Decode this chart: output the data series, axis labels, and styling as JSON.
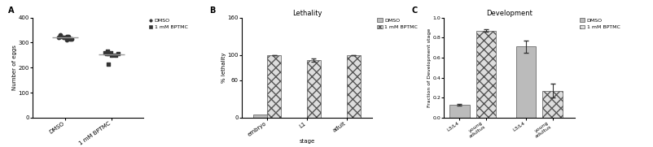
{
  "panel_A": {
    "panel_label": "A",
    "ylabel": "Number of eggs",
    "groups": [
      "DMSO",
      "1 mM BPTMC"
    ],
    "dmso_points": [
      320,
      315,
      325,
      310,
      330,
      325,
      320,
      315,
      325,
      320
    ],
    "bptmc_points": [
      260,
      255,
      250,
      265,
      255,
      260,
      215,
      250,
      260,
      255
    ],
    "dmso_mean": 321,
    "bptmc_mean": 253,
    "ylim": [
      0,
      400
    ],
    "yticks": [
      0,
      100,
      200,
      300,
      400
    ],
    "legend_labels": [
      "DMSO",
      "1 mM BPTMC"
    ]
  },
  "panel_B": {
    "title": "Lethality",
    "panel_label": "B",
    "ylabel": "% lethality",
    "xlabel": "stage",
    "stages": [
      "embryo",
      "L1",
      "adult"
    ],
    "dmso_values": [
      5,
      0,
      0
    ],
    "bptmc_values": [
      100,
      92,
      100
    ],
    "bptmc_errors": [
      0,
      3,
      0
    ],
    "ylim": [
      0,
      160
    ],
    "yticks": [
      0,
      60,
      100,
      160
    ],
    "legend_labels": [
      "DMSO",
      "1 mM BPTMC"
    ]
  },
  "panel_C": {
    "title": "Development",
    "panel_label": "C",
    "ylabel": "Fraction of Development stage",
    "categories": [
      "L3/L4",
      "young\nadultus",
      "L3/L4",
      "young\nadultus"
    ],
    "values": [
      0.13,
      0.87,
      0.71,
      0.27
    ],
    "errors": [
      0.01,
      0.01,
      0.06,
      0.07
    ],
    "ylim": [
      0.0,
      1.0
    ],
    "yticks": [
      0.0,
      0.2,
      0.4,
      0.6,
      0.8,
      1.0
    ],
    "legend_labels": [
      "DMSO",
      "1 mM BPTMC"
    ]
  }
}
